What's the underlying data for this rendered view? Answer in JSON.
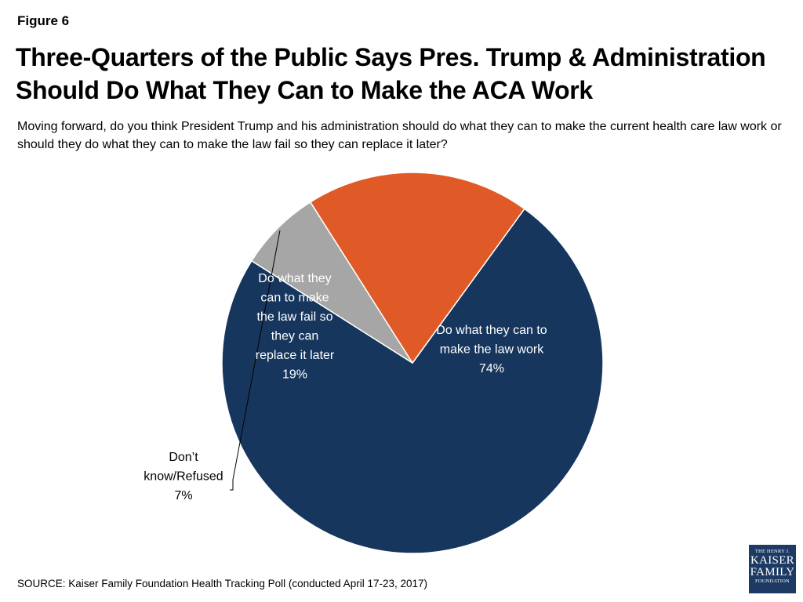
{
  "figure_label": "Figure 6",
  "title": "Three-Quarters of the Public Says Pres. Trump & Administration Should Do What They Can to Make the ACA Work",
  "subtitle": "Moving forward, do you think President Trump and his administration should do what they can to make the current health care law work or should they do what they can to make the law fail so they can replace it later?",
  "source": "SOURCE: Kaiser Family Foundation Health Tracking Poll (conducted April 17-23, 2017)",
  "logo": {
    "line1": "THE HENRY J.",
    "line2": "KAISER",
    "line3": "FAMILY",
    "line4": "FOUNDATION"
  },
  "chart_data": {
    "type": "pie",
    "title": "",
    "start_angle_deg": 36,
    "direction": "clockwise",
    "legend": "none",
    "slices": [
      {
        "label_lines": [
          "Do what they can to",
          "make the law work"
        ],
        "value": 74,
        "value_label": "74%",
        "color": "#17365d",
        "label_color": "#ffffff",
        "label_position": "inside"
      },
      {
        "label_lines": [
          "Don’t",
          "know/Refused"
        ],
        "value": 7,
        "value_label": "7%",
        "color": "#a6a6a6",
        "label_color": "#000000",
        "label_position": "outside-left"
      },
      {
        "label_lines": [
          "Do what they",
          "can to make",
          "the law fail so",
          "they can",
          "replace it later"
        ],
        "value": 19,
        "value_label": "19%",
        "color": "#e05a27",
        "label_color": "#ffffff",
        "label_position": "inside"
      }
    ]
  }
}
